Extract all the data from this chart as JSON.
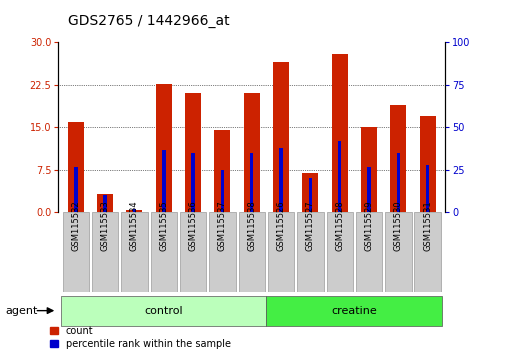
{
  "title": "GDS2765 / 1442966_at",
  "samples": [
    "GSM115532",
    "GSM115533",
    "GSM115534",
    "GSM115535",
    "GSM115536",
    "GSM115537",
    "GSM115538",
    "GSM115526",
    "GSM115527",
    "GSM115528",
    "GSM115529",
    "GSM115530",
    "GSM115531"
  ],
  "count_values": [
    16.0,
    3.3,
    0.5,
    22.6,
    21.0,
    14.5,
    21.0,
    26.5,
    7.0,
    28.0,
    15.0,
    19.0,
    17.0
  ],
  "percentile_values": [
    27,
    10,
    2,
    37,
    35,
    25,
    35,
    38,
    20,
    42,
    27,
    35,
    28
  ],
  "groups": [
    {
      "label": "control",
      "start": 0,
      "end": 7,
      "color": "#bbffbb"
    },
    {
      "label": "creatine",
      "start": 7,
      "end": 13,
      "color": "#44ee44"
    }
  ],
  "bar_color_red": "#cc2200",
  "bar_color_blue": "#0000cc",
  "bar_width": 0.55,
  "blue_bar_width": 0.12,
  "ylim_left": [
    0,
    30
  ],
  "ylim_right": [
    0,
    100
  ],
  "yticks_left": [
    0,
    7.5,
    15,
    22.5,
    30
  ],
  "yticks_right": [
    0,
    25,
    50,
    75,
    100
  ],
  "grid_yticks": [
    7.5,
    15,
    22.5
  ],
  "agent_label": "agent",
  "legend_count": "count",
  "legend_percentile": "percentile rank within the sample",
  "title_fontsize": 10,
  "tick_label_fontsize": 7,
  "sample_fontsize": 6,
  "group_fontsize": 8
}
